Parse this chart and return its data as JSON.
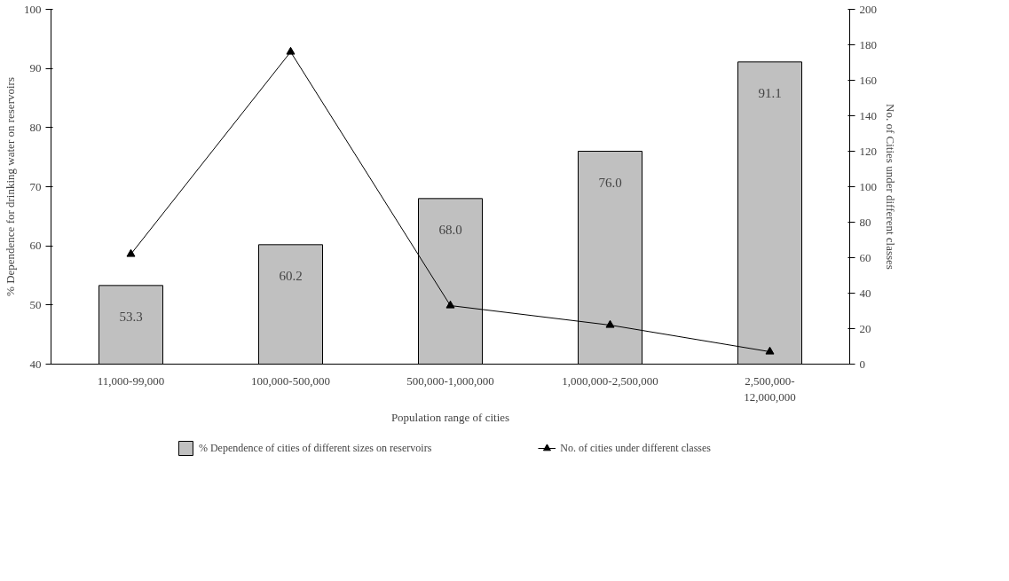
{
  "chart_data": {
    "type": "bar",
    "xlabel": "Population range of cities",
    "ylabel": "% Dependence for drinking water on reservoirs",
    "y2label": "No. of Cities under different classes",
    "categories": [
      "11,000-99,000",
      "100,000-500,000",
      "500,000-1,000,000",
      "1,000,000-2,500,000",
      "2,500,000-12,000,000"
    ],
    "series": [
      {
        "name": "% Dependence of cities of different sizes on reservoirs",
        "color": "#c0c0c0",
        "values": [
          53.3,
          60.2,
          68.0,
          76.0,
          91.1
        ],
        "value_labels": [
          "53.3",
          "60.2",
          "68.0",
          "76.0",
          "91.1"
        ]
      },
      {
        "name": "No. of cities under different classes",
        "type": "line",
        "color": "#000000",
        "axis": "y2",
        "marker": "triangle",
        "values": [
          62,
          176,
          33,
          22,
          7
        ]
      }
    ],
    "ylim": [
      40,
      100
    ],
    "yticks": [
      40,
      50,
      60,
      70,
      80,
      90,
      100
    ],
    "y2lim": [
      0,
      200
    ],
    "y2ticks": [
      0,
      20,
      40,
      60,
      80,
      100,
      120,
      140,
      160,
      180,
      200
    ],
    "grid": false,
    "legend": "bottom"
  }
}
